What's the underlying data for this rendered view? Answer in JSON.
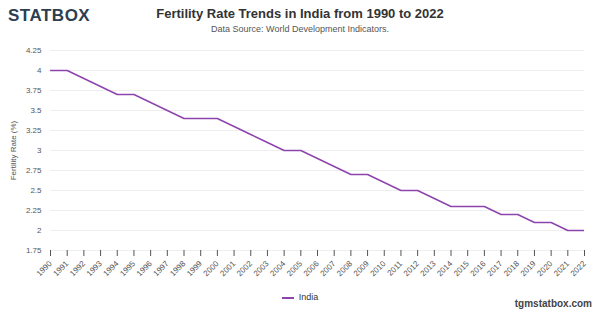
{
  "chart_data": {
    "type": "line",
    "title": "Fertility Rate Trends in India from 1990 to 2022",
    "subtitle": "Data Source: World Development Indicators.",
    "logo": "STATBOX",
    "source_url": "tgmstatbox.com",
    "y_label": "Fertility Rate (%)",
    "x": [
      1990,
      1991,
      1992,
      1993,
      1994,
      1995,
      1996,
      1997,
      1998,
      1999,
      2000,
      2001,
      2002,
      2003,
      2004,
      2005,
      2006,
      2007,
      2008,
      2009,
      2010,
      2011,
      2012,
      2013,
      2014,
      2015,
      2016,
      2017,
      2018,
      2019,
      2020,
      2021,
      2022
    ],
    "series": [
      {
        "name": "India",
        "color": "#8e44ad",
        "values": [
          4.0,
          4.0,
          3.9,
          3.8,
          3.7,
          3.7,
          3.6,
          3.5,
          3.4,
          3.4,
          3.4,
          3.3,
          3.2,
          3.1,
          3.0,
          3.0,
          2.9,
          2.8,
          2.7,
          2.7,
          2.6,
          2.5,
          2.5,
          2.4,
          2.3,
          2.3,
          2.3,
          2.2,
          2.2,
          2.1,
          2.1,
          2.0,
          2.0
        ]
      }
    ],
    "xlim": [
      1990,
      2022
    ],
    "xticks": [
      1990,
      1991,
      1992,
      1993,
      1994,
      1995,
      1996,
      1997,
      1998,
      1999,
      2000,
      2001,
      2002,
      2003,
      2004,
      2005,
      2006,
      2007,
      2008,
      2009,
      2010,
      2011,
      2012,
      2013,
      2014,
      2015,
      2016,
      2017,
      2018,
      2019,
      2020,
      2021,
      2022
    ],
    "ylim": [
      1.75,
      4.25
    ],
    "yticks": [
      1.75,
      2,
      2.25,
      2.5,
      2.75,
      3,
      3.25,
      3.5,
      3.75,
      4,
      4.25
    ],
    "grid": true,
    "legend": "bottom"
  }
}
